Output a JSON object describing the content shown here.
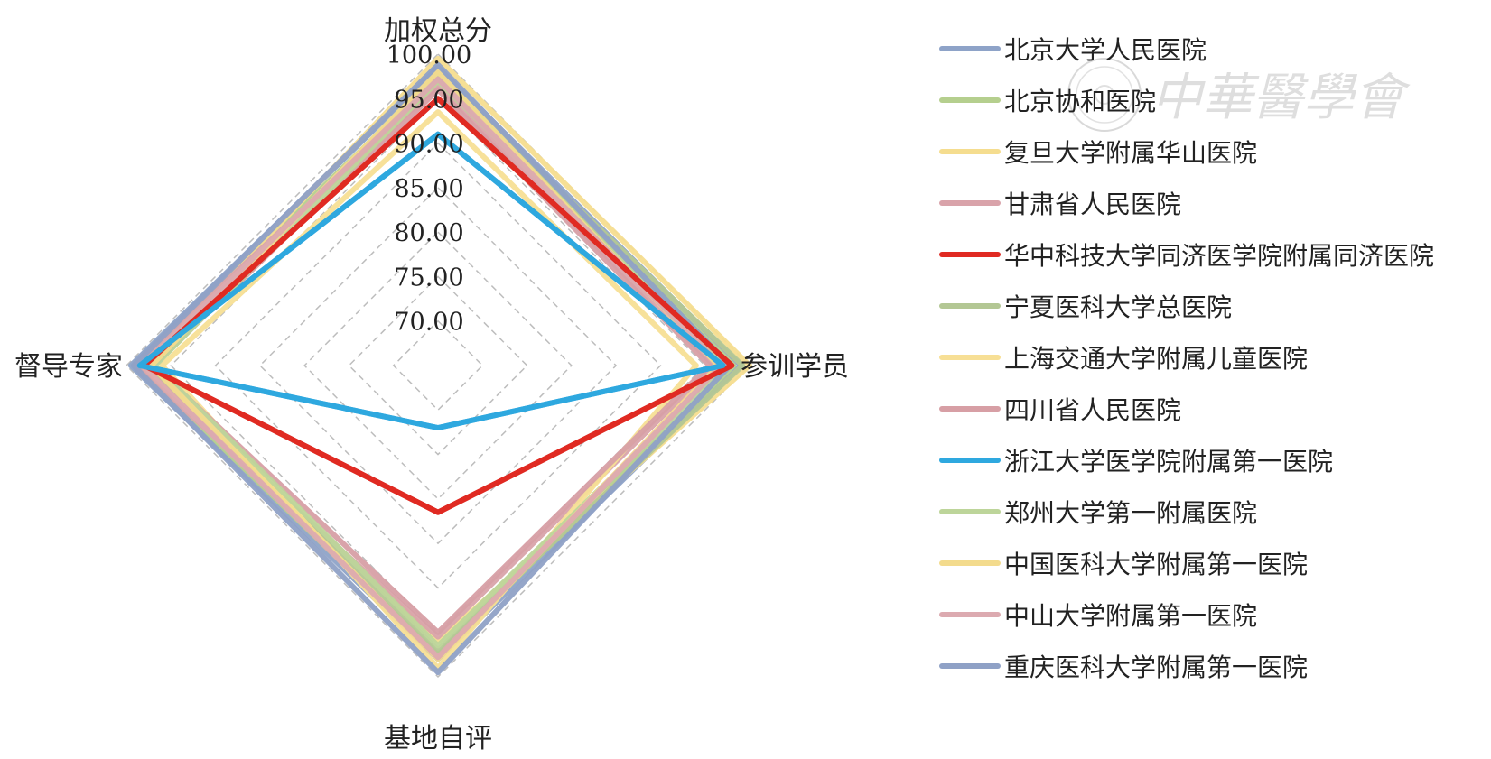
{
  "watermark": {
    "text": "中華醫學會"
  },
  "chart_data": {
    "type": "radar",
    "axes": [
      "加权总分",
      "参训学员",
      "基地自评",
      "督导专家"
    ],
    "r_ticks": [
      "100.00",
      "95.00",
      "90.00",
      "85.00",
      "80.00",
      "75.00",
      "70.00"
    ],
    "r_range": [
      65,
      100
    ],
    "grid": "dashed",
    "legend_position": "right",
    "series": [
      {
        "name": "北京大学人民医院",
        "color": "#8ea3c8",
        "width": 6,
        "values": [
          98.5,
          99.0,
          98.0,
          99.5
        ]
      },
      {
        "name": "北京协和医院",
        "color": "#b5cf8e",
        "width": 6,
        "values": [
          97.5,
          98.2,
          97.5,
          98.8
        ]
      },
      {
        "name": "复旦大学附属华山医院",
        "color": "#f5dd8f",
        "width": 6,
        "values": [
          99.5,
          100.0,
          96.0,
          98.0
        ]
      },
      {
        "name": "甘肃省人民医院",
        "color": "#d9a3aa",
        "width": 6,
        "values": [
          96.5,
          96.0,
          95.5,
          99.0
        ]
      },
      {
        "name": "华中科技大学同济医学院附属同济医院",
        "color": "#e02a22",
        "width": 6,
        "values": [
          95.0,
          98.0,
          81.5,
          98.0
        ]
      },
      {
        "name": "宁夏医科大学总医院",
        "color": "#b3c794",
        "width": 6,
        "values": [
          97.8,
          99.2,
          97.0,
          97.5
        ]
      },
      {
        "name": "上海交通大学附属儿童医院",
        "color": "#f7df95",
        "width": 6,
        "values": [
          93.5,
          94.0,
          99.0,
          96.0
        ]
      },
      {
        "name": "四川省人民医院",
        "color": "#d79fa5",
        "width": 6,
        "values": [
          96.0,
          95.5,
          95.0,
          97.0
        ]
      },
      {
        "name": "浙江大学医学院附属第一医院",
        "color": "#2ea8df",
        "width": 6,
        "values": [
          91.0,
          97.0,
          72.0,
          98.5
        ]
      },
      {
        "name": "郑州大学第一附属医院",
        "color": "#bdd59a",
        "width": 6,
        "values": [
          97.0,
          97.5,
          96.5,
          96.8
        ]
      },
      {
        "name": "中国医科大学附属第一医院",
        "color": "#f3db8d",
        "width": 6,
        "values": [
          98.0,
          96.5,
          98.0,
          97.2
        ]
      },
      {
        "name": "中山大学附属第一医院",
        "color": "#dcaab0",
        "width": 6,
        "values": [
          97.2,
          96.8,
          97.8,
          98.2
        ]
      },
      {
        "name": "重庆医科大学附属第一医院",
        "color": "#8fa1c6",
        "width": 6,
        "values": [
          98.8,
          97.8,
          99.5,
          99.2
        ]
      }
    ]
  }
}
